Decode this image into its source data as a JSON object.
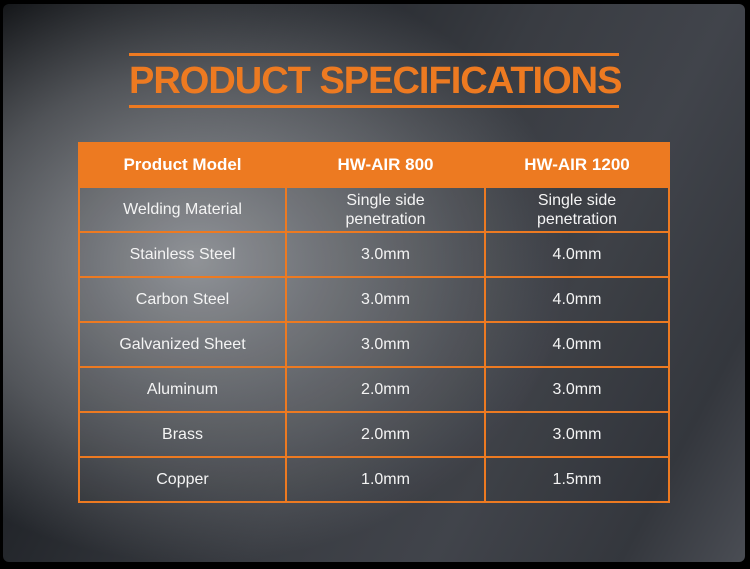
{
  "title": {
    "text": "PRODUCT SPECIFICATIONS"
  },
  "colors": {
    "accent_orange": "#ED7A21",
    "header_text": "#FFFFFF",
    "cell_text": "#F4F4F4",
    "background_dark": "#131518",
    "background_light": "#8A8D92"
  },
  "table": {
    "columns": [
      "Product Model",
      "HW-AIR 800",
      "HW-AIR 1200"
    ],
    "rows": [
      [
        "Welding Material",
        "Single side\npenetration",
        "Single side\npenetration"
      ],
      [
        "Stainless Steel",
        "3.0mm",
        "4.0mm"
      ],
      [
        "Carbon Steel",
        "3.0mm",
        "4.0mm"
      ],
      [
        "Galvanized Sheet",
        "3.0mm",
        "4.0mm"
      ],
      [
        "Aluminum",
        "2.0mm",
        "3.0mm"
      ],
      [
        "Brass",
        "2.0mm",
        "3.0mm"
      ],
      [
        "Copper",
        "1.0mm",
        "1.5mm"
      ]
    ]
  }
}
